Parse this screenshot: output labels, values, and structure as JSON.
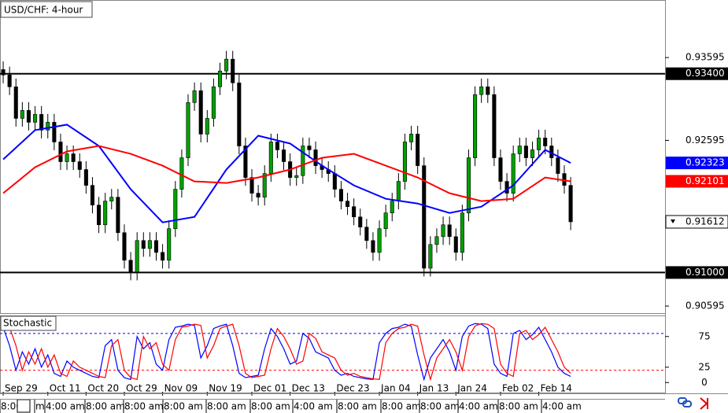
{
  "chart_data": {
    "type": "candlestick",
    "title": "USD/CHF: 4-hour",
    "xlim": [
      -0.5,
      103.8
    ],
    "ylim": [
      0.9051,
      0.9429
    ],
    "yticks": [
      0.93595,
      0.92595,
      0.90595
    ],
    "xticks": [
      {
        "value": 0,
        "label": "Sep 29"
      },
      {
        "value": 7,
        "label": "Oct 11"
      },
      {
        "value": 13,
        "label": "Oct 20"
      },
      {
        "value": 19,
        "label": "Oct 29"
      },
      {
        "value": 25,
        "label": "Nov 09"
      },
      {
        "value": 32,
        "label": "Nov 19"
      },
      {
        "value": 39,
        "label": "Dec 01"
      },
      {
        "value": 45,
        "label": "Dec 13"
      },
      {
        "value": 52,
        "label": "Dec 23"
      },
      {
        "value": 59,
        "label": "Jan 04"
      },
      {
        "value": 65,
        "label": "Jan 13"
      },
      {
        "value": 71,
        "label": "Jan 24"
      },
      {
        "value": 78,
        "label": "Feb 02"
      },
      {
        "value": 84,
        "label": "Feb 14"
      }
    ],
    "time_labels": [
      "8:00",
      "m",
      "4:00 am",
      "8:00 am",
      "8:00 am",
      "8:00 am",
      "8:00 am",
      "8:00 am",
      "4:00 am",
      "8:00 am",
      "8:00 am",
      "8:00 am",
      "4:00 am",
      "8:00 am",
      "4:00 am"
    ],
    "up_color": "#00a000",
    "down_color": "#000000",
    "open": [
      0.9345,
      0.93385,
      0.93242,
      0.92861,
      0.92957,
      0.92814,
      0.92909,
      0.92719,
      0.92814,
      0.92576,
      0.92338,
      0.92433,
      0.92338,
      0.92243,
      0.92052,
      0.91814,
      0.91576,
      0.91862,
      0.91909,
      0.91481,
      0.91148,
      0.91005,
      0.91386,
      0.9129,
      0.91386,
      0.91243,
      0.91148,
      0.91529,
      0.92005,
      0.92385,
      0.93052,
      0.93195,
      0.92671,
      0.92861,
      0.93242,
      0.93433,
      0.93576,
      0.9329,
      0.92528,
      0.92147,
      0.91957,
      0.91909,
      0.92195,
      0.92576,
      0.92481,
      0.92338,
      0.92147,
      0.9217,
      0.92528,
      0.92481,
      0.9229,
      0.92243,
      0.92195,
      0.92005,
      0.91862,
      0.91795,
      0.91671,
      0.91548,
      0.91386,
      0.91243,
      0.91529,
      0.91719,
      0.91862,
      0.921,
      0.92576,
      0.92671,
      0.9229,
      0.91052,
      0.91338,
      0.91433,
      0.91576,
      0.91433,
      0.91243,
      0.91719,
      0.92385,
      0.93148,
      0.93242,
      0.93148,
      0.92385,
      0.921,
      0.91957,
      0.92433,
      0.92528,
      0.92385,
      0.92481,
      0.92624,
      0.92528,
      0.92385,
      0.92195,
      0.92052
    ],
    "high": [
      0.9355,
      0.93485,
      0.93342,
      0.93057,
      0.93057,
      0.93009,
      0.93009,
      0.92914,
      0.92914,
      0.92676,
      0.92533,
      0.92533,
      0.92438,
      0.92343,
      0.92152,
      0.91914,
      0.91962,
      0.92009,
      0.92009,
      0.91581,
      0.91248,
      0.91486,
      0.91486,
      0.91486,
      0.91486,
      0.91343,
      0.91629,
      0.92105,
      0.92485,
      0.93152,
      0.93295,
      0.93295,
      0.92961,
      0.93342,
      0.93533,
      0.93676,
      0.93676,
      0.9339,
      0.92628,
      0.92247,
      0.92057,
      0.92295,
      0.92676,
      0.92676,
      0.92581,
      0.92438,
      0.9227,
      0.92628,
      0.92628,
      0.92581,
      0.9239,
      0.92343,
      0.92295,
      0.92105,
      0.91962,
      0.91895,
      0.91771,
      0.91648,
      0.91486,
      0.91629,
      0.91819,
      0.91962,
      0.922,
      0.92676,
      0.92771,
      0.92771,
      0.9239,
      0.91438,
      0.91533,
      0.91676,
      0.91676,
      0.91533,
      0.91819,
      0.92485,
      0.93248,
      0.93342,
      0.93342,
      0.93248,
      0.92485,
      0.922,
      0.92533,
      0.92628,
      0.92628,
      0.92581,
      0.92724,
      0.92724,
      0.92628,
      0.92485,
      0.92295,
      0.92152
    ],
    "low": [
      0.93285,
      0.93142,
      0.92761,
      0.92761,
      0.92714,
      0.92714,
      0.92619,
      0.92619,
      0.92476,
      0.92238,
      0.92238,
      0.92238,
      0.92143,
      0.91952,
      0.91714,
      0.91476,
      0.91476,
      0.91762,
      0.91381,
      0.91048,
      0.90905,
      0.90905,
      0.9119,
      0.9119,
      0.91143,
      0.91048,
      0.91048,
      0.91429,
      0.91905,
      0.92285,
      0.92952,
      0.92571,
      0.92571,
      0.92761,
      0.93142,
      0.93333,
      0.9319,
      0.92428,
      0.92047,
      0.91857,
      0.91809,
      0.91809,
      0.92095,
      0.92381,
      0.92238,
      0.92047,
      0.92047,
      0.9207,
      0.92381,
      0.9219,
      0.92143,
      0.92095,
      0.91905,
      0.91762,
      0.91695,
      0.91571,
      0.91448,
      0.91286,
      0.91143,
      0.91143,
      0.91429,
      0.91619,
      0.91762,
      0.92,
      0.92476,
      0.9219,
      0.90952,
      0.90952,
      0.91238,
      0.91333,
      0.91333,
      0.91143,
      0.91143,
      0.91619,
      0.92285,
      0.93048,
      0.93048,
      0.92285,
      0.92,
      0.91857,
      0.91857,
      0.92333,
      0.92285,
      0.92285,
      0.92381,
      0.92428,
      0.92285,
      0.92095,
      0.91952,
      0.91512
    ],
    "close": [
      0.93385,
      0.93242,
      0.92861,
      0.92957,
      0.92814,
      0.92909,
      0.92719,
      0.92814,
      0.92576,
      0.92338,
      0.92433,
      0.92338,
      0.92243,
      0.92052,
      0.91814,
      0.91576,
      0.91862,
      0.91909,
      0.91481,
      0.91148,
      0.91005,
      0.91386,
      0.9129,
      0.91386,
      0.91243,
      0.91148,
      0.91529,
      0.92005,
      0.92385,
      0.93052,
      0.93195,
      0.92671,
      0.92861,
      0.93242,
      0.93433,
      0.93576,
      0.9329,
      0.92528,
      0.92147,
      0.91957,
      0.91909,
      0.92195,
      0.92576,
      0.92481,
      0.92338,
      0.92147,
      0.9217,
      0.92528,
      0.92481,
      0.9229,
      0.92243,
      0.92195,
      0.92005,
      0.91862,
      0.91795,
      0.91671,
      0.91548,
      0.91386,
      0.91243,
      0.91529,
      0.91719,
      0.91862,
      0.921,
      0.92576,
      0.92671,
      0.9229,
      0.91052,
      0.91338,
      0.91433,
      0.91576,
      0.91433,
      0.91243,
      0.91719,
      0.92385,
      0.93148,
      0.93242,
      0.93148,
      0.92385,
      0.921,
      0.91957,
      0.92433,
      0.92528,
      0.92385,
      0.92481,
      0.92624,
      0.92528,
      0.92385,
      0.92195,
      0.92052,
      0.91612
    ],
    "series": [
      {
        "color": "#0000ff",
        "x": [
          0,
          5,
          10,
          15,
          20,
          25,
          30,
          35,
          40,
          45,
          50,
          55,
          60,
          65,
          70,
          75,
          80,
          85,
          89
        ],
        "values": [
          0.92366,
          0.92719,
          0.92785,
          0.92528,
          0.92005,
          0.91605,
          0.91671,
          0.92243,
          0.92652,
          0.92557,
          0.9229,
          0.92052,
          0.9189,
          0.91833,
          0.91719,
          0.91795,
          0.92052,
          0.92481,
          0.92323
        ]
      },
      {
        "color": "#ff0000",
        "x": [
          0,
          5,
          10,
          15,
          20,
          25,
          30,
          35,
          40,
          45,
          50,
          55,
          60,
          65,
          70,
          75,
          80,
          85,
          89
        ],
        "values": [
          0.91957,
          0.92271,
          0.92462,
          0.92528,
          0.92433,
          0.9229,
          0.921,
          0.92081,
          0.92147,
          0.92243,
          0.92385,
          0.92433,
          0.9229,
          0.92147,
          0.91957,
          0.91862,
          0.9189,
          0.92147,
          0.92101
        ]
      }
    ],
    "hlines": [
      {
        "value": 0.934,
        "label": "0.93400"
      },
      {
        "value": 0.91,
        "label": "0.91000"
      }
    ],
    "stochastic": {
      "title": "Stochastic",
      "ylim": [
        -15,
        108
      ],
      "yticks": [
        75,
        25,
        0
      ],
      "levels": [
        {
          "value": 80,
          "color": "#0000ff"
        },
        {
          "value": 20,
          "color": "#ff0000"
        }
      ],
      "series": [
        {
          "color": "#0000ff",
          "values": [
            90,
            60,
            20,
            50,
            30,
            55,
            25,
            45,
            15,
            10,
            35,
            25,
            20,
            15,
            10,
            8,
            60,
            70,
            20,
            8,
            5,
            75,
            55,
            65,
            30,
            20,
            70,
            90,
            92,
            95,
            93,
            40,
            60,
            88,
            92,
            95,
            60,
            15,
            8,
            10,
            12,
            55,
            88,
            75,
            55,
            30,
            35,
            80,
            72,
            50,
            45,
            40,
            20,
            12,
            15,
            10,
            8,
            6,
            5,
            65,
            80,
            88,
            90,
            95,
            92,
            45,
            5,
            40,
            55,
            70,
            50,
            20,
            75,
            92,
            96,
            95,
            88,
            30,
            15,
            10,
            80,
            85,
            70,
            78,
            90,
            70,
            50,
            25,
            15,
            10
          ]
        },
        {
          "color": "#ff0000",
          "values": [
            85,
            90,
            60,
            20,
            50,
            30,
            55,
            25,
            45,
            15,
            10,
            35,
            25,
            20,
            15,
            10,
            8,
            60,
            70,
            20,
            8,
            5,
            75,
            55,
            65,
            30,
            20,
            70,
            90,
            92,
            95,
            93,
            40,
            60,
            88,
            92,
            95,
            60,
            15,
            8,
            10,
            12,
            55,
            88,
            75,
            55,
            30,
            35,
            80,
            72,
            50,
            45,
            40,
            20,
            12,
            15,
            10,
            8,
            6,
            5,
            65,
            80,
            88,
            90,
            95,
            92,
            45,
            5,
            40,
            55,
            70,
            50,
            20,
            75,
            92,
            96,
            95,
            88,
            30,
            15,
            10,
            80,
            85,
            70,
            78,
            90,
            70,
            50,
            25,
            15
          ]
        }
      ]
    }
  }
}
